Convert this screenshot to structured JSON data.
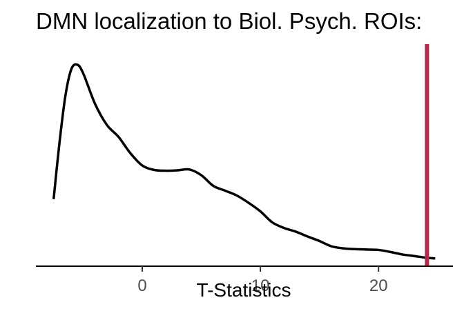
{
  "chart_data": {
    "type": "line",
    "title": "DMN localization to Biol. Psych. ROIs:",
    "xlabel": "T-Statistics",
    "ylabel": "",
    "xlim": [
      -9,
      26.3
    ],
    "ylim": [
      0,
      0.055
    ],
    "x_ticks": [
      0,
      10,
      20
    ],
    "x_tick_labels": [
      "0",
      "10",
      "20"
    ],
    "show_y_axis": false,
    "grid": false,
    "series": [
      {
        "line_color": "#000000",
        "points": [
          [
            -7.5,
            0.0165
          ],
          [
            -7.0,
            0.0305
          ],
          [
            -6.5,
            0.042
          ],
          [
            -6.0,
            0.0485
          ],
          [
            -5.5,
            0.0496
          ],
          [
            -5.0,
            0.0475
          ],
          [
            -4.0,
            0.04
          ],
          [
            -3.0,
            0.0348
          ],
          [
            -2.0,
            0.0318
          ],
          [
            -1.0,
            0.0278
          ],
          [
            0.0,
            0.0248
          ],
          [
            1.0,
            0.0237
          ],
          [
            2.0,
            0.0235
          ],
          [
            3.0,
            0.0236
          ],
          [
            4.0,
            0.0238
          ],
          [
            5.0,
            0.0224
          ],
          [
            6.0,
            0.0198
          ],
          [
            7.0,
            0.0186
          ],
          [
            8.0,
            0.0174
          ],
          [
            9.0,
            0.0156
          ],
          [
            10.0,
            0.0135
          ],
          [
            11.0,
            0.0108
          ],
          [
            12.0,
            0.0094
          ],
          [
            13.0,
            0.0085
          ],
          [
            14.0,
            0.0073
          ],
          [
            15.0,
            0.0062
          ],
          [
            16.0,
            0.0049
          ],
          [
            17.0,
            0.0044
          ],
          [
            18.0,
            0.0042
          ],
          [
            19.0,
            0.0041
          ],
          [
            20.0,
            0.004
          ],
          [
            21.0,
            0.0035
          ],
          [
            22.0,
            0.0029
          ],
          [
            23.0,
            0.0025
          ],
          [
            24.0,
            0.0021
          ],
          [
            24.8,
            0.0019
          ]
        ]
      }
    ],
    "reference_line": {
      "x": 24.1,
      "color": "#b5284a"
    }
  }
}
